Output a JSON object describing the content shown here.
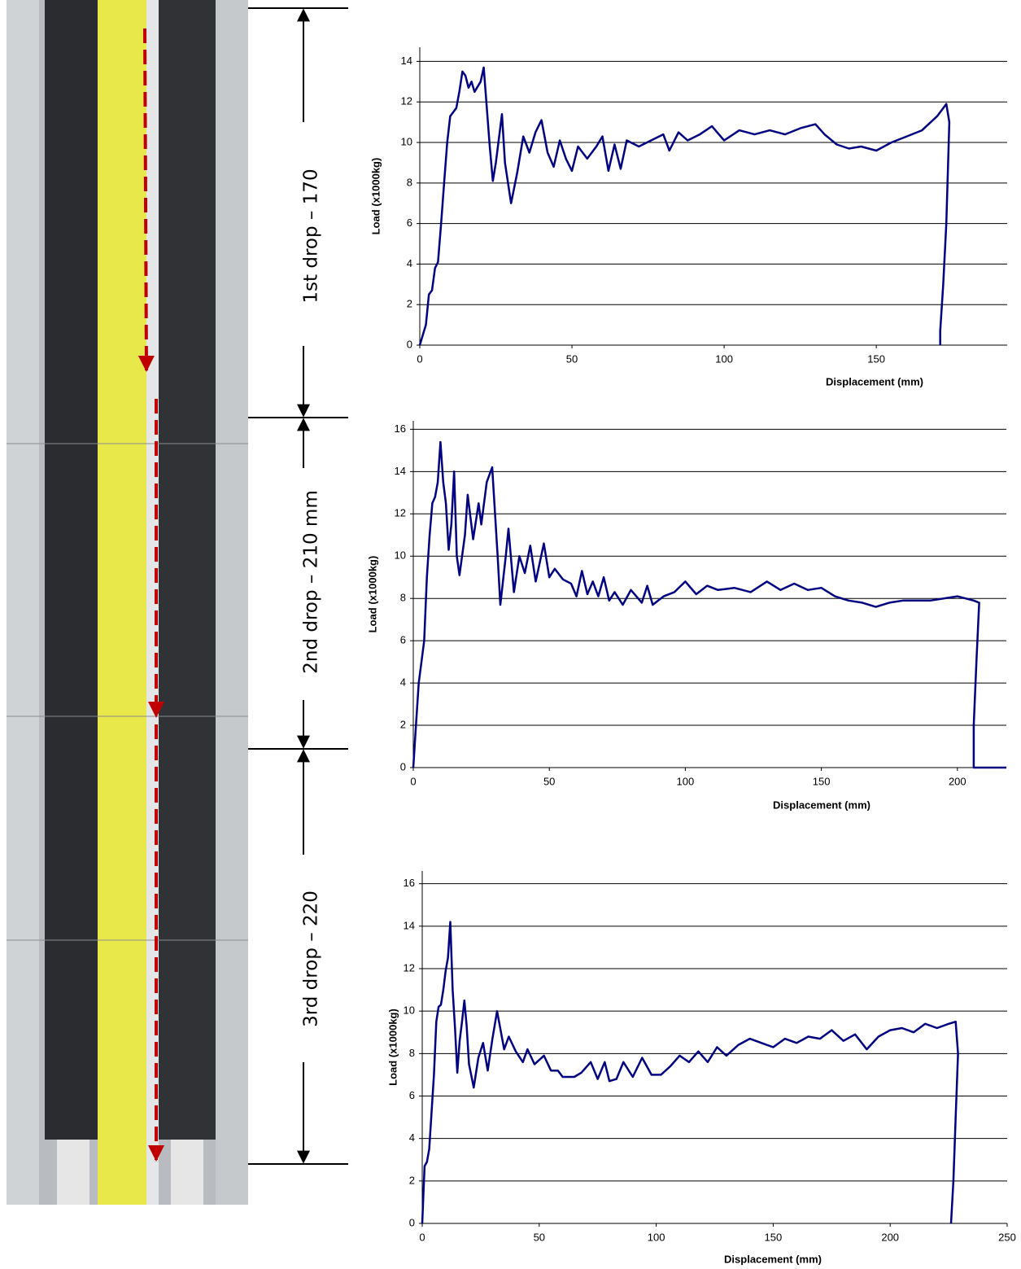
{
  "drop_labels": [
    "1st  drop – 170",
    "2nd drop – 210 mm",
    "3rd drop – 220"
  ],
  "chart_data": [
    {
      "type": "line",
      "xlabel": "Displacement (mm)",
      "ylabel": "Load (x1000kg)",
      "color": "#000080",
      "grid": true,
      "xlim": [
        0,
        193
      ],
      "xticks": [
        0,
        50,
        100,
        150
      ],
      "ylim": [
        0,
        14.7
      ],
      "yticks": [
        0,
        2,
        4,
        6,
        8,
        10,
        12,
        14
      ],
      "x": [
        0,
        1,
        2,
        3,
        4,
        5,
        6,
        7,
        8,
        9,
        10,
        12,
        13,
        14,
        15,
        16,
        17,
        18,
        20,
        21,
        23,
        24,
        25,
        27,
        28,
        30,
        32,
        34,
        36,
        38,
        40,
        42,
        44,
        46,
        48,
        50,
        52,
        55,
        58,
        60,
        62,
        64,
        66,
        68,
        72,
        76,
        80,
        82,
        85,
        88,
        92,
        96,
        100,
        105,
        110,
        115,
        120,
        125,
        130,
        133,
        137,
        141,
        145,
        150,
        155,
        160,
        165,
        170,
        173,
        174,
        173,
        172,
        171,
        171
      ],
      "values": [
        0,
        0.5,
        1,
        2.5,
        2.7,
        3.8,
        4.1,
        6,
        8,
        10,
        11.3,
        11.7,
        12.5,
        13.5,
        13.3,
        12.7,
        13,
        12.5,
        13,
        13.7,
        9.8,
        8.1,
        9,
        11.4,
        9,
        7,
        8.5,
        10.3,
        9.5,
        10.5,
        11.1,
        9.5,
        8.8,
        10.1,
        9.2,
        8.6,
        9.8,
        9.2,
        9.8,
        10.3,
        8.6,
        9.9,
        8.7,
        10.1,
        9.8,
        10.1,
        10.4,
        9.6,
        10.5,
        10.1,
        10.4,
        10.8,
        10.1,
        10.6,
        10.4,
        10.6,
        10.4,
        10.7,
        10.9,
        10.4,
        9.9,
        9.7,
        9.8,
        9.6,
        10,
        10.3,
        10.6,
        11.3,
        11.9,
        11,
        6,
        3,
        0.7,
        0
      ]
    },
    {
      "type": "line",
      "xlabel": "Displacement (mm)",
      "ylabel": "Load (x1000kg)",
      "color": "#000080",
      "grid": true,
      "xlim": [
        0,
        218
      ],
      "xticks": [
        0,
        50,
        100,
        150,
        200
      ],
      "ylim": [
        0,
        16.4
      ],
      "yticks": [
        0,
        2,
        4,
        6,
        8,
        10,
        12,
        14,
        16
      ],
      "x": [
        0,
        1,
        2,
        4,
        5,
        6,
        7,
        8,
        9,
        10,
        11,
        12,
        13,
        14,
        15,
        16,
        17,
        19,
        20,
        22,
        24,
        25,
        27,
        29,
        31,
        32,
        34,
        35,
        37,
        39,
        41,
        43,
        45,
        48,
        50,
        52,
        55,
        58,
        60,
        62,
        64,
        66,
        68,
        70,
        72,
        74,
        77,
        80,
        84,
        86,
        88,
        92,
        96,
        100,
        104,
        108,
        112,
        118,
        124,
        130,
        135,
        140,
        145,
        150,
        155,
        160,
        165,
        170,
        175,
        180,
        190,
        200,
        206,
        208,
        207,
        206,
        206,
        210,
        218
      ],
      "values": [
        0,
        2,
        4,
        6,
        9,
        11,
        12.5,
        12.8,
        13.5,
        15.4,
        13.5,
        12.5,
        10.3,
        11.5,
        14,
        10,
        9.1,
        11,
        12.9,
        10.8,
        12.5,
        11.5,
        13.5,
        14.2,
        10,
        7.7,
        10,
        11.3,
        8.3,
        10,
        9.2,
        10.5,
        8.8,
        10.6,
        9,
        9.4,
        8.9,
        8.7,
        8.1,
        9.3,
        8.2,
        8.8,
        8.1,
        9,
        7.9,
        8.3,
        7.7,
        8.4,
        7.8,
        8.6,
        7.7,
        8.1,
        8.3,
        8.8,
        8.2,
        8.6,
        8.4,
        8.5,
        8.3,
        8.8,
        8.4,
        8.7,
        8.4,
        8.5,
        8.1,
        7.9,
        7.8,
        7.6,
        7.8,
        7.9,
        7.9,
        8.1,
        7.9,
        7.8,
        5,
        2,
        0,
        0,
        0
      ]
    },
    {
      "type": "line",
      "xlabel": "Displacement (mm)",
      "ylabel": "Load (x1000kg)",
      "color": "#000080",
      "grid": true,
      "xlim": [
        0,
        250
      ],
      "xticks": [
        0,
        50,
        100,
        150,
        200,
        250
      ],
      "ylim": [
        0,
        16.6
      ],
      "yticks": [
        0,
        2,
        4,
        6,
        8,
        10,
        12,
        14,
        16
      ],
      "x": [
        0,
        1,
        2,
        3,
        5,
        6,
        7,
        8,
        9,
        10,
        11,
        12,
        13,
        14,
        15,
        16,
        17,
        18,
        19,
        20,
        22,
        24,
        26,
        28,
        30,
        32,
        34,
        35,
        37,
        40,
        43,
        45,
        48,
        52,
        55,
        58,
        60,
        65,
        68,
        72,
        75,
        78,
        80,
        83,
        86,
        90,
        94,
        98,
        102,
        106,
        110,
        114,
        118,
        122,
        126,
        130,
        135,
        140,
        145,
        150,
        155,
        160,
        165,
        170,
        175,
        180,
        185,
        190,
        195,
        200,
        205,
        210,
        215,
        220,
        225,
        228,
        229,
        228,
        227,
        226
      ],
      "values": [
        0,
        2.7,
        2.9,
        3.5,
        7,
        9.5,
        10.2,
        10.3,
        11,
        11.9,
        12.5,
        14.2,
        11,
        9.2,
        7.1,
        8.6,
        9.5,
        10.5,
        9.3,
        7.5,
        6.4,
        7.8,
        8.5,
        7.2,
        8.7,
        10,
        8.8,
        8.2,
        8.8,
        8.1,
        7.6,
        8.2,
        7.5,
        7.9,
        7.2,
        7.2,
        6.9,
        6.9,
        7.1,
        7.6,
        6.8,
        7.6,
        6.7,
        6.8,
        7.6,
        6.9,
        7.8,
        7,
        7,
        7.4,
        7.9,
        7.6,
        8.1,
        7.6,
        8.3,
        7.9,
        8.4,
        8.7,
        8.5,
        8.3,
        8.7,
        8.5,
        8.8,
        8.7,
        9.1,
        8.6,
        8.9,
        8.2,
        8.8,
        9.1,
        9.2,
        9,
        9.4,
        9.2,
        9.4,
        9.5,
        8,
        5,
        2,
        0
      ]
    }
  ]
}
